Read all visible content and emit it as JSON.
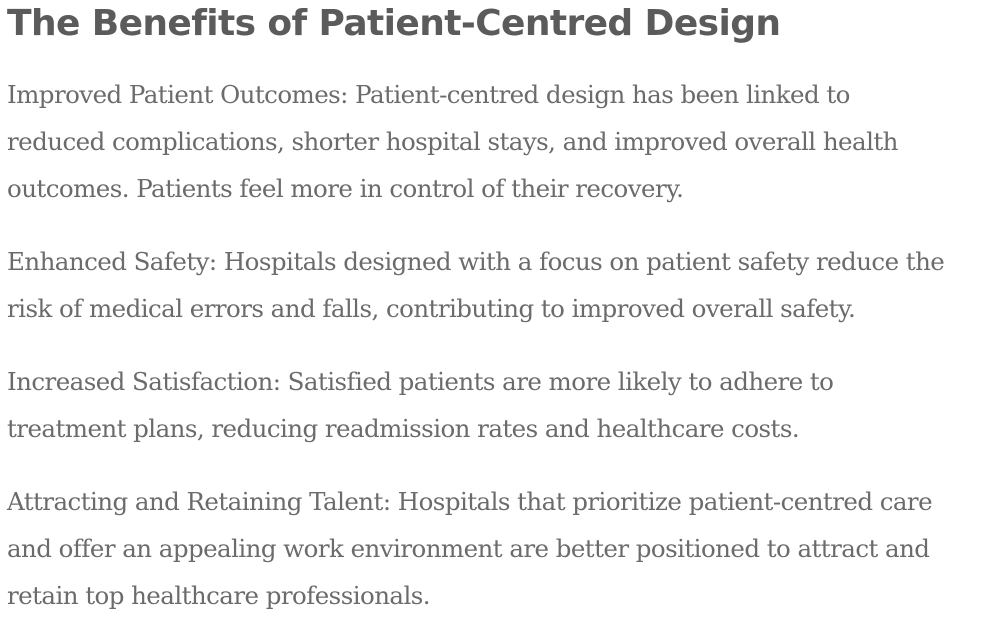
{
  "heading": "The Benefits of Patient-Centred Design",
  "paragraphs": [
    {
      "lines": [
        "Improved Patient Outcomes: Patient-centred design has been linked to",
        "reduced complications, shorter hospital stays, and improved overall health",
        "outcomes. Patients feel more in control of their recovery."
      ]
    },
    {
      "lines": [
        "Enhanced Safety: Hospitals designed with a focus on patient safety reduce the",
        "risk of medical errors and falls, contributing to improved overall safety."
      ]
    },
    {
      "lines": [
        "Increased Satisfaction: Satisfied patients are more likely to adhere to",
        "treatment plans, reducing readmission rates and healthcare costs."
      ]
    },
    {
      "lines": [
        "Attracting and Retaining Talent: Hospitals that prioritize patient-centred care",
        "and offer an appealing work environment are better positioned to attract and",
        "retain top healthcare professionals."
      ]
    }
  ]
}
